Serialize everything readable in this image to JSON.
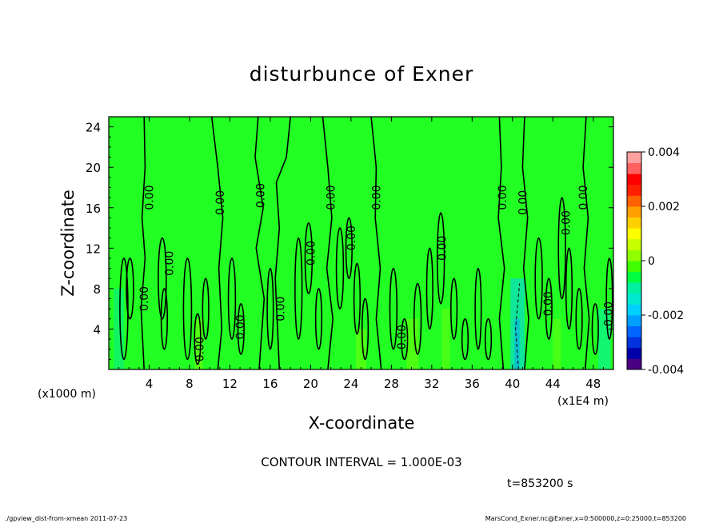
{
  "chart_data": {
    "type": "heatmap",
    "title": "disturbunce of Exner",
    "xlabel": "X-coordinate",
    "ylabel": "Z-coordinate",
    "x_unit_left": "(x1000 m)",
    "x_unit_right": "(x1E4 m)",
    "xlim": [
      0,
      50
    ],
    "ylim": [
      0,
      25
    ],
    "x_ticks": [
      "4",
      "8",
      "12",
      "16",
      "20",
      "24",
      "28",
      "32",
      "36",
      "40",
      "44",
      "48"
    ],
    "x_tick_values": [
      4,
      8,
      12,
      16,
      20,
      24,
      28,
      32,
      36,
      40,
      44,
      48
    ],
    "y_ticks": [
      "4",
      "8",
      "12",
      "16",
      "20",
      "24"
    ],
    "y_tick_values": [
      4,
      8,
      12,
      16,
      20,
      24
    ],
    "colorbar": {
      "range": [
        -0.004,
        0.004
      ],
      "labels": [
        "0.004",
        "0.002",
        "0",
        "-0.002",
        "-0.004"
      ],
      "label_values": [
        0.004,
        0.002,
        0,
        -0.002,
        -0.004
      ],
      "colors": [
        "#4b0082",
        "#0000aa",
        "#0033dd",
        "#0066ff",
        "#00a0ff",
        "#00d0ff",
        "#00e8d0",
        "#00f0a0",
        "#00ff40",
        "#40ff00",
        "#90ff00",
        "#c8ff00",
        "#ffff00",
        "#ffd000",
        "#ffa000",
        "#ff6000",
        "#ff2000",
        "#ff0000",
        "#ff6060",
        "#ffa0a0"
      ]
    },
    "field_color": "#22ff22",
    "contour_interval_text": "CONTOUR INTERVAL = 1.000E-03",
    "contour_label": "0.00",
    "contour_labels": [
      {
        "x": 3.5,
        "y": 7,
        "text": "0.00"
      },
      {
        "x": 4,
        "y": 17,
        "text": "0.00"
      },
      {
        "x": 6,
        "y": 10.5,
        "text": "0.00"
      },
      {
        "x": 9,
        "y": 2,
        "text": "0.00"
      },
      {
        "x": 11,
        "y": 16.5,
        "text": "0.00"
      },
      {
        "x": 13,
        "y": 4.2,
        "text": "0.00"
      },
      {
        "x": 15,
        "y": 17.2,
        "text": "0.00"
      },
      {
        "x": 17,
        "y": 6,
        "text": "0.00"
      },
      {
        "x": 20,
        "y": 11.5,
        "text": "0.00"
      },
      {
        "x": 22,
        "y": 17,
        "text": "0.00"
      },
      {
        "x": 24,
        "y": 13,
        "text": "0.00"
      },
      {
        "x": 26.5,
        "y": 17,
        "text": "0.00"
      },
      {
        "x": 29,
        "y": 3.2,
        "text": "0.00"
      },
      {
        "x": 33,
        "y": 12,
        "text": "0.00"
      },
      {
        "x": 39,
        "y": 17,
        "text": "0.00"
      },
      {
        "x": 41,
        "y": 16.5,
        "text": "0.00"
      },
      {
        "x": 43.5,
        "y": 6.5,
        "text": "0.00"
      },
      {
        "x": 45.3,
        "y": 14.5,
        "text": "0.00"
      },
      {
        "x": 47,
        "y": 17,
        "text": "0.00"
      },
      {
        "x": 49.5,
        "y": 5.5,
        "text": "0.00"
      }
    ]
  },
  "time_text": "t=853200 s",
  "footer_left": "./gpview_dist-from-xmean  2011-07-23",
  "footer_right": "MarsCond_Exner.nc@Exner,x=0:500000,z=0:25000,t=853200"
}
